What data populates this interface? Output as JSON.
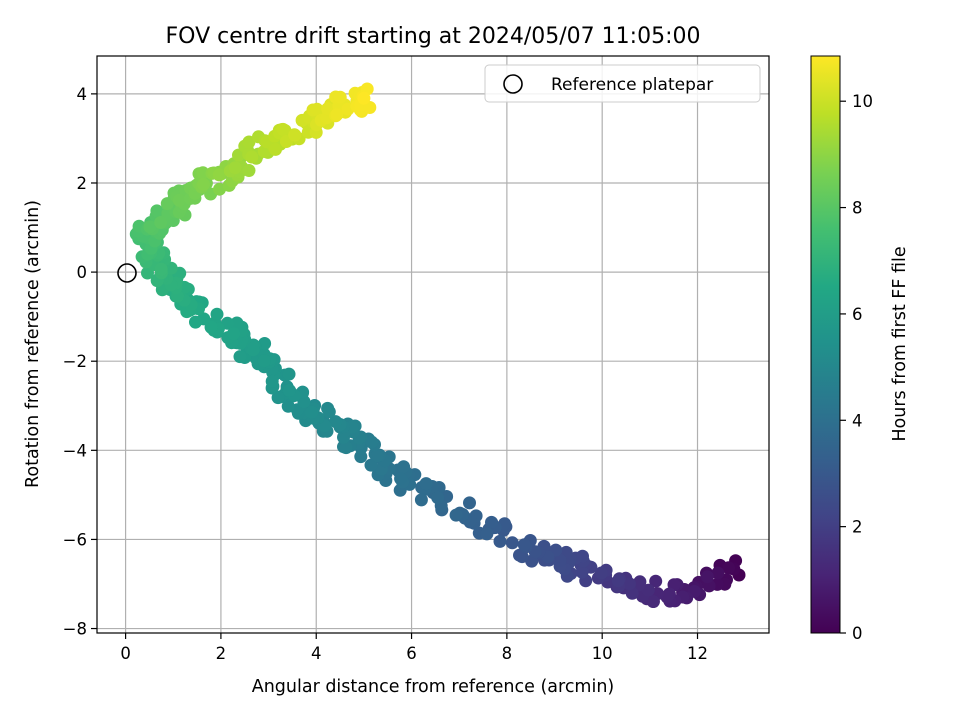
{
  "chart_data": {
    "type": "scatter",
    "title": "FOV centre drift starting at 2024/05/07 11:05:00",
    "xlabel": "Angular distance from reference (arcmin)",
    "ylabel": "Rotation from reference (arcmin)",
    "xlim": [
      -0.6,
      13.5
    ],
    "ylim": [
      -8.1,
      4.85
    ],
    "xticks": [
      0,
      2,
      4,
      6,
      8,
      10,
      12
    ],
    "yticks": [
      -8,
      -6,
      -4,
      -2,
      0,
      2,
      4
    ],
    "grid": true,
    "legend": {
      "label": "Reference platepar",
      "placement": "top-right"
    },
    "reference_point": {
      "x": 0,
      "y": 0
    },
    "colorbar": {
      "label": "Hours from first FF file",
      "colormap": "viridis",
      "range": [
        0,
        10.85
      ],
      "ticks": [
        0,
        2,
        4,
        6,
        8,
        10
      ]
    },
    "series_anchors": [
      [
        12.8,
        -6.7,
        0.0
      ],
      [
        11.6,
        -7.2,
        0.9
      ],
      [
        10.5,
        -7.1,
        1.6
      ],
      [
        9.4,
        -6.6,
        2.3
      ],
      [
        8.5,
        -6.2,
        2.8
      ],
      [
        7.2,
        -5.5,
        3.4
      ],
      [
        6.0,
        -4.8,
        3.9
      ],
      [
        5.3,
        -4.2,
        4.3
      ],
      [
        4.6,
        -3.6,
        4.8
      ],
      [
        3.9,
        -3.1,
        5.2
      ],
      [
        3.3,
        -2.5,
        5.6
      ],
      [
        2.7,
        -1.8,
        5.9
      ],
      [
        2.2,
        -1.3,
        6.2
      ],
      [
        1.3,
        -0.7,
        6.6
      ],
      [
        0.9,
        -0.2,
        6.9
      ],
      [
        0.5,
        0.3,
        7.3
      ],
      [
        0.4,
        0.9,
        7.7
      ],
      [
        0.8,
        1.3,
        8.1
      ],
      [
        1.4,
        1.8,
        8.5
      ],
      [
        2.1,
        2.2,
        9.0
      ],
      [
        2.8,
        2.8,
        9.5
      ],
      [
        3.6,
        3.2,
        10.0
      ],
      [
        4.5,
        3.7,
        10.5
      ],
      [
        5.0,
        3.9,
        10.8
      ]
    ],
    "points_per_segment": 20
  }
}
